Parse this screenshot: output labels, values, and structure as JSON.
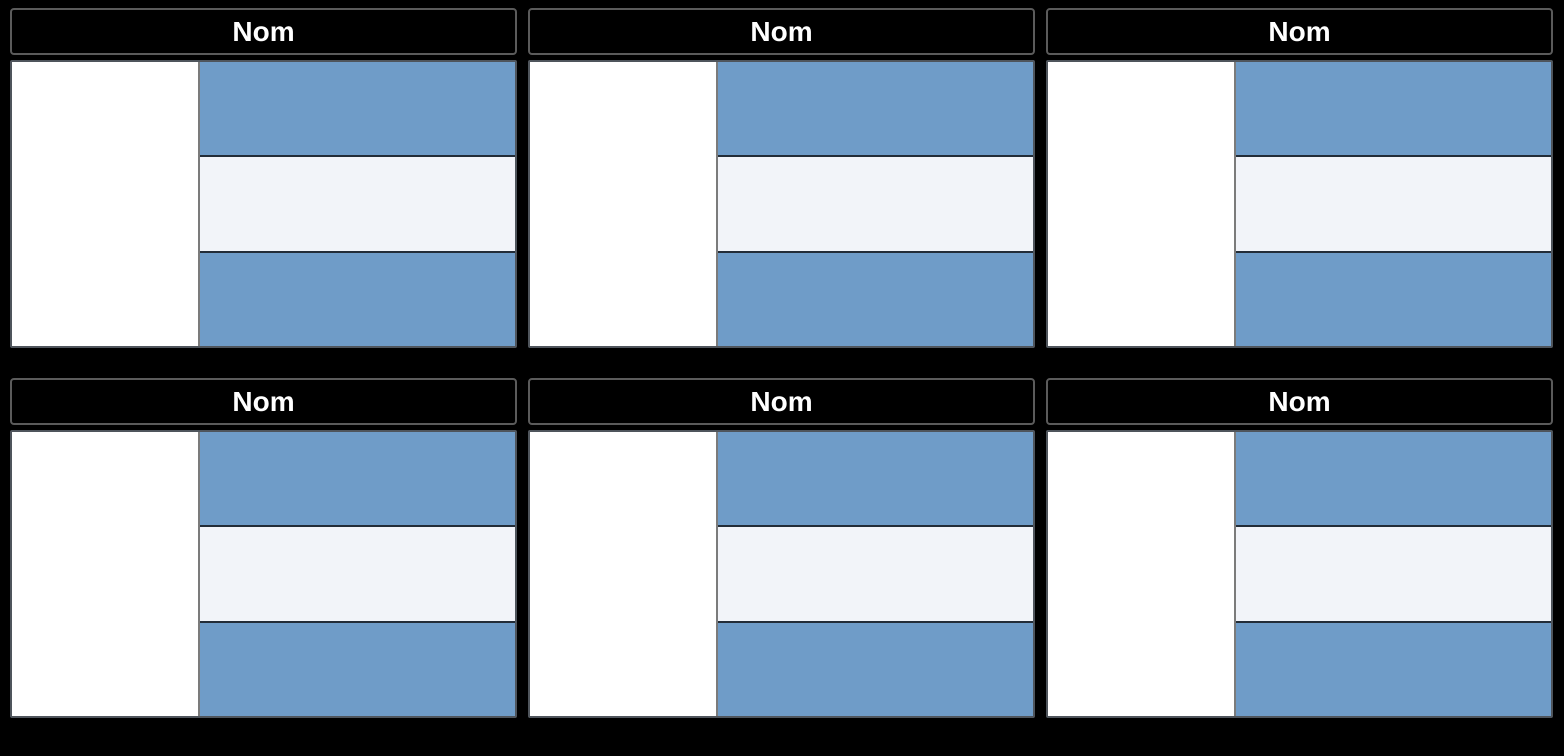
{
  "board": {
    "cells": [
      {
        "title": "Nom"
      },
      {
        "title": "Nom"
      },
      {
        "title": "Nom"
      },
      {
        "title": "Nom"
      },
      {
        "title": "Nom"
      },
      {
        "title": "Nom"
      }
    ]
  },
  "colors": {
    "background": "#000000",
    "header_background": "#000000",
    "header_border": "#5b5b5b",
    "header_text": "#ffffff",
    "body_border": "#4f555c",
    "pane_white": "#ffffff",
    "pane_divider": "#7b7b7b",
    "stripe_blue": "#6f9cc8",
    "stripe_light": "#f2f4f9",
    "stripe_divider": "#232d38"
  }
}
